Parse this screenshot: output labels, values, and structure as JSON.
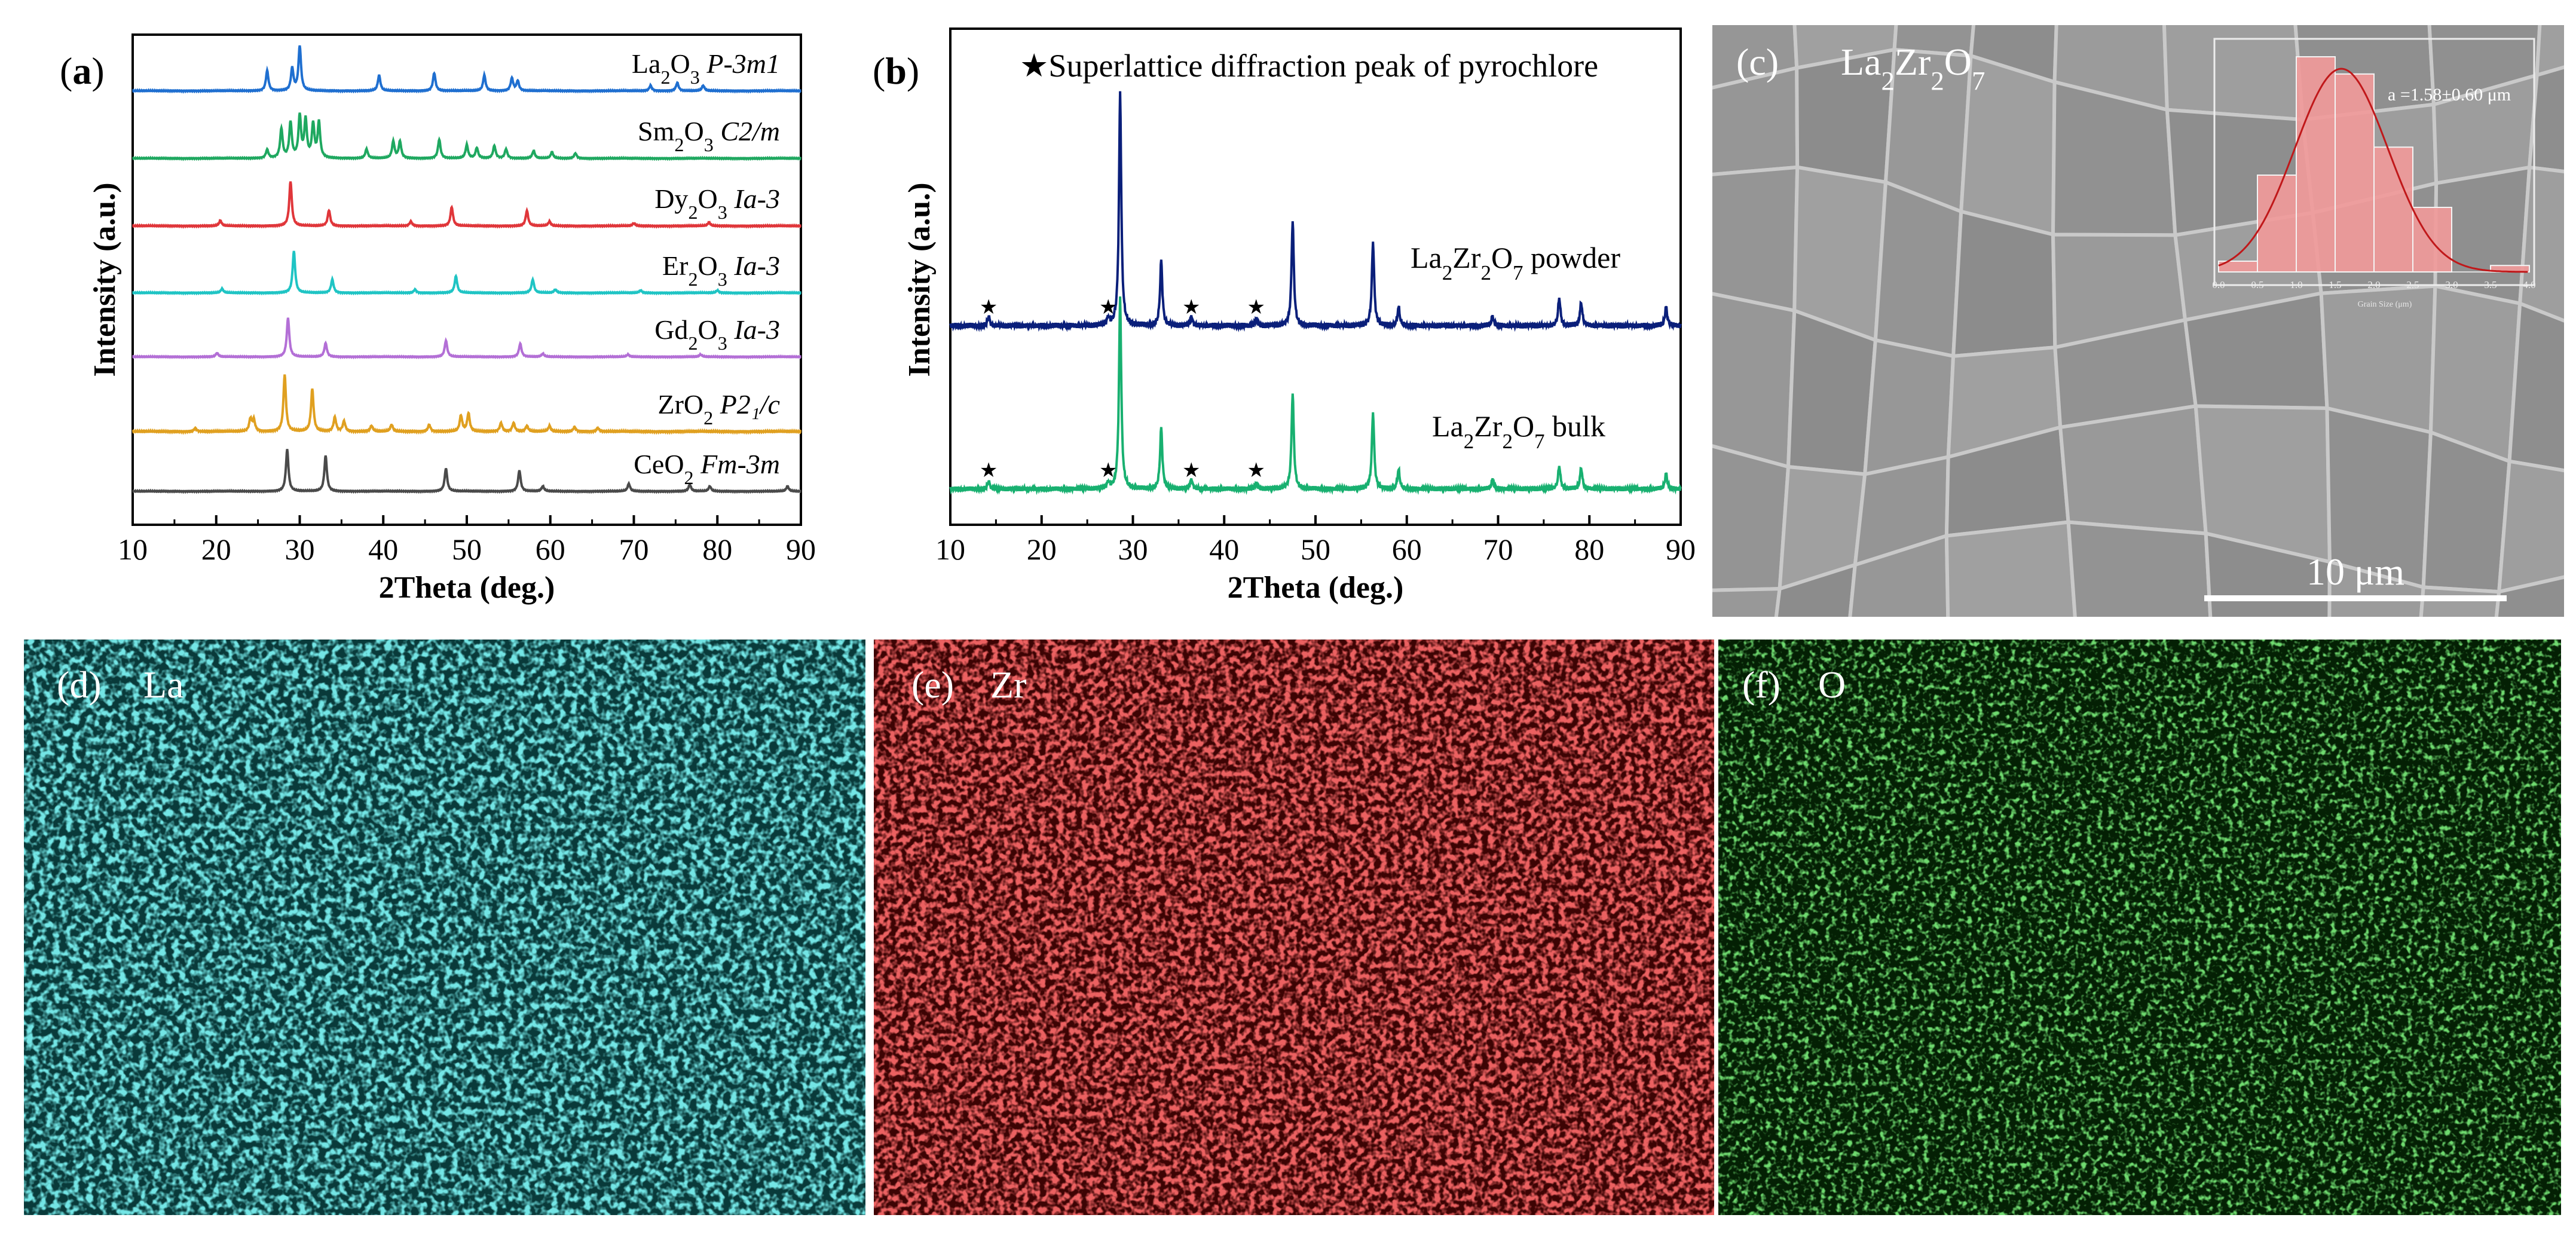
{
  "chart_data": [
    {
      "type": "line",
      "panel": "(a)",
      "panel_bold": "a",
      "xlabel": "2Theta (deg.)",
      "ylabel": "Intensity (a.u.)",
      "xlim": [
        10,
        90
      ],
      "x_ticks": [
        10,
        20,
        30,
        40,
        50,
        60,
        70,
        80,
        90
      ],
      "series": [
        {
          "formula": [
            "La",
            "2",
            "O",
            "3"
          ],
          "group": "P-3m1",
          "color": "#1f6fd0",
          "peaks": [
            [
              26.1,
              0.45
            ],
            [
              29.1,
              0.5
            ],
            [
              30.0,
              1.0
            ],
            [
              39.5,
              0.35
            ],
            [
              46.1,
              0.4
            ],
            [
              52.1,
              0.35
            ],
            [
              55.4,
              0.28
            ],
            [
              56.1,
              0.22
            ],
            [
              72.0,
              0.12
            ],
            [
              75.2,
              0.18
            ],
            [
              78.3,
              0.12
            ]
          ]
        },
        {
          "formula": [
            "Sm",
            "2",
            "O",
            "3"
          ],
          "group": "C2/m",
          "color": "#1fa860",
          "peaks": [
            [
              26.1,
              0.2
            ],
            [
              27.8,
              0.7
            ],
            [
              28.9,
              0.85
            ],
            [
              30.0,
              1.0
            ],
            [
              30.7,
              0.9
            ],
            [
              31.6,
              0.8
            ],
            [
              32.3,
              0.85
            ],
            [
              38.0,
              0.22
            ],
            [
              41.2,
              0.4
            ],
            [
              42.0,
              0.4
            ],
            [
              46.7,
              0.45
            ],
            [
              50.0,
              0.32
            ],
            [
              51.2,
              0.25
            ],
            [
              53.3,
              0.3
            ],
            [
              54.7,
              0.22
            ],
            [
              58.0,
              0.18
            ],
            [
              60.2,
              0.15
            ],
            [
              63.0,
              0.12
            ]
          ]
        },
        {
          "formula": [
            "Dy",
            "2",
            "O",
            "3"
          ],
          "group": "Ia-3",
          "color": "#e0363a",
          "peaks": [
            [
              20.5,
              0.12
            ],
            [
              28.9,
              1.0
            ],
            [
              33.5,
              0.35
            ],
            [
              43.3,
              0.1
            ],
            [
              48.2,
              0.42
            ],
            [
              57.2,
              0.34
            ],
            [
              59.9,
              0.1
            ],
            [
              70.0,
              0.06
            ],
            [
              79.0,
              0.08
            ]
          ]
        },
        {
          "formula": [
            "Er",
            "2",
            "O",
            "3"
          ],
          "group": "Ia-3",
          "color": "#1fc4c4",
          "peaks": [
            [
              20.7,
              0.1
            ],
            [
              29.3,
              1.0
            ],
            [
              33.9,
              0.32
            ],
            [
              43.8,
              0.08
            ],
            [
              48.7,
              0.4
            ],
            [
              57.9,
              0.32
            ],
            [
              60.6,
              0.08
            ],
            [
              70.8,
              0.06
            ],
            [
              80.0,
              0.06
            ]
          ]
        },
        {
          "formula": [
            "Gd",
            "2",
            "O",
            "3"
          ],
          "group": "Ia-3",
          "color": "#b36fd6",
          "peaks": [
            [
              20.1,
              0.1
            ],
            [
              28.6,
              1.0
            ],
            [
              33.1,
              0.35
            ],
            [
              47.5,
              0.42
            ],
            [
              56.4,
              0.34
            ],
            [
              59.1,
              0.08
            ],
            [
              69.3,
              0.06
            ],
            [
              78.0,
              0.06
            ]
          ]
        },
        {
          "formula": [
            "ZrO",
            "2",
            "",
            ""
          ],
          "group": "P2₁/c",
          "color": "#e0a020",
          "peaks": [
            [
              17.5,
              0.06
            ],
            [
              24.1,
              0.22
            ],
            [
              24.5,
              0.2
            ],
            [
              28.2,
              1.0
            ],
            [
              31.5,
              0.75
            ],
            [
              34.2,
              0.25
            ],
            [
              35.3,
              0.18
            ],
            [
              38.6,
              0.1
            ],
            [
              41.0,
              0.12
            ],
            [
              45.5,
              0.12
            ],
            [
              49.3,
              0.28
            ],
            [
              50.2,
              0.32
            ],
            [
              54.1,
              0.15
            ],
            [
              55.6,
              0.15
            ],
            [
              57.2,
              0.1
            ],
            [
              59.9,
              0.1
            ],
            [
              62.9,
              0.08
            ],
            [
              65.7,
              0.06
            ]
          ]
        },
        {
          "formula": [
            "CeO",
            "2",
            "",
            ""
          ],
          "group": "Fm-3m",
          "color": "#4a4a4a",
          "peaks": [
            [
              28.5,
              1.0
            ],
            [
              33.1,
              0.85
            ],
            [
              47.5,
              0.55
            ],
            [
              56.3,
              0.5
            ],
            [
              59.1,
              0.12
            ],
            [
              69.4,
              0.18
            ],
            [
              76.7,
              0.16
            ],
            [
              79.1,
              0.12
            ],
            [
              88.4,
              0.12
            ]
          ]
        }
      ]
    },
    {
      "type": "line",
      "panel": "(b)",
      "panel_bold": "b",
      "xlabel": "2Theta (deg.)",
      "ylabel": "Intensity (a.u.)",
      "xlim": [
        10,
        90
      ],
      "x_ticks": [
        10,
        20,
        30,
        40,
        50,
        60,
        70,
        80,
        90
      ],
      "legend": "★Superlattice diffraction peak of pyrochlore",
      "star_positions": [
        14.2,
        27.3,
        36.4,
        43.5
      ],
      "star_glyph": "★",
      "series": [
        {
          "name_formula": [
            "La",
            "2",
            "Zr",
            "2",
            "O",
            "7"
          ],
          "name_suffix": "  powder",
          "color": "#0a1f7a",
          "peaks": [
            [
              14.2,
              0.04
            ],
            [
              27.3,
              0.03
            ],
            [
              28.6,
              1.0
            ],
            [
              33.1,
              0.28
            ],
            [
              36.4,
              0.04
            ],
            [
              43.5,
              0.03
            ],
            [
              47.5,
              0.45
            ],
            [
              56.3,
              0.36
            ],
            [
              59.1,
              0.08
            ],
            [
              69.4,
              0.04
            ],
            [
              76.7,
              0.12
            ],
            [
              79.1,
              0.1
            ],
            [
              88.4,
              0.08
            ]
          ]
        },
        {
          "name_formula": [
            "La",
            "2",
            "Zr",
            "2",
            "O",
            "7"
          ],
          "name_suffix": "  bulk",
          "color": "#18b070",
          "peaks": [
            [
              14.2,
              0.04
            ],
            [
              27.3,
              0.03
            ],
            [
              28.6,
              1.0
            ],
            [
              33.1,
              0.32
            ],
            [
              36.4,
              0.05
            ],
            [
              43.5,
              0.03
            ],
            [
              47.5,
              0.5
            ],
            [
              56.3,
              0.4
            ],
            [
              59.1,
              0.1
            ],
            [
              69.4,
              0.05
            ],
            [
              76.7,
              0.12
            ],
            [
              79.1,
              0.11
            ],
            [
              88.4,
              0.08
            ]
          ]
        }
      ]
    },
    {
      "type": "bar",
      "panel": "(c)",
      "title_formula": [
        "La",
        "2",
        "Zr",
        "2",
        "O",
        "7"
      ],
      "scale_bar": "10 μm",
      "inset": {
        "xlabel": "Grain Size (μm)",
        "annotation": "a =1.58±0.60 μm",
        "x_ticks": [
          "0.0",
          "0.5",
          "1.0",
          "1.5",
          "2.0",
          "2.5",
          "3.0",
          "3.5",
          "4.0"
        ],
        "bins": [
          [
            0.0,
            0.5,
            0.05
          ],
          [
            0.5,
            1.0,
            0.45
          ],
          [
            1.0,
            1.5,
            1.0
          ],
          [
            1.5,
            2.0,
            0.92
          ],
          [
            2.0,
            2.5,
            0.58
          ],
          [
            2.5,
            3.0,
            0.3
          ],
          [
            3.5,
            4.0,
            0.03
          ]
        ],
        "fit": {
          "mean": 1.58,
          "sd": 0.6
        }
      }
    }
  ],
  "maps": [
    {
      "panel": "(d)",
      "element": "La",
      "color": "#2bc6c8"
    },
    {
      "panel": "(e)",
      "element": "Zr",
      "color": "#d42020"
    },
    {
      "panel": "(f)",
      "element": "O",
      "color": "#28b028"
    }
  ],
  "background_colors": {
    "sem": "#999999",
    "map_la": "#093a3a",
    "map_zr": "#3d0404",
    "map_o": "#042004"
  }
}
